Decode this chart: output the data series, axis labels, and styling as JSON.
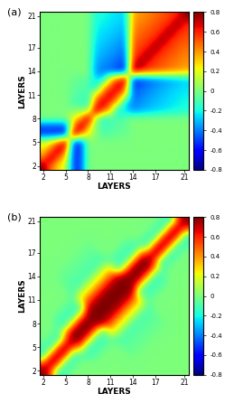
{
  "layers_min": 2,
  "layers_max": 21,
  "vmin": -0.8,
  "vmax": 0.8,
  "xticks": [
    2,
    5,
    8,
    11,
    14,
    17,
    21
  ],
  "yticks": [
    2,
    5,
    8,
    11,
    14,
    17,
    21
  ],
  "xlabel": "LAYERS",
  "ylabel": "LAYERS",
  "label_a": "(a)",
  "label_b": "(b)",
  "colorbar_ticks": [
    -0.8,
    -0.6,
    -0.4,
    -0.2,
    0,
    0.2,
    0.4,
    0.6,
    0.8
  ],
  "figsize": [
    2.59,
    4.46
  ],
  "dpi": 100
}
